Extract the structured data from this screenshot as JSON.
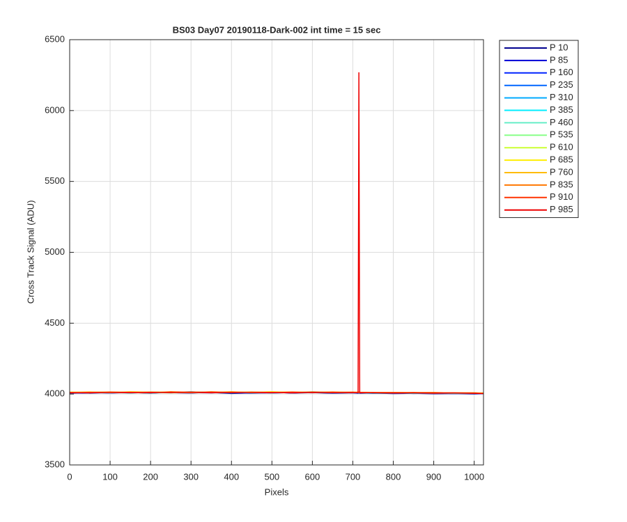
{
  "chart_data": {
    "type": "line",
    "title": "BS03 Day07 20190118-Dark-002 int time = 15 sec",
    "xlabel": "Pixels",
    "ylabel": "Cross Track Signal (ADU)",
    "x": [
      0,
      50,
      100,
      150,
      200,
      250,
      300,
      350,
      400,
      450,
      500,
      550,
      600,
      650,
      700,
      713,
      715,
      717,
      750,
      800,
      850,
      900,
      950,
      1000,
      1023
    ],
    "xlim": [
      0,
      1023
    ],
    "xticks": [
      0,
      100,
      200,
      300,
      400,
      500,
      600,
      700,
      800,
      900,
      1000
    ],
    "ylim": [
      3500,
      6500
    ],
    "yticks": [
      3500,
      4000,
      4500,
      5000,
      5500,
      6000,
      6500
    ],
    "grid": true,
    "legend": "outside-right",
    "series": [
      {
        "name": "P 10",
        "color": "#00008f",
        "values": [
          4005,
          4010,
          4008,
          4012,
          4006,
          4015,
          4009,
          4011,
          4004,
          4008,
          4013,
          4007,
          4010,
          4006,
          4009,
          4005,
          4008,
          4006,
          4007,
          4003,
          4005,
          4002,
          4004,
          4001,
          4003
        ]
      },
      {
        "name": "P 85",
        "color": "#0000d6",
        "values": [
          4008,
          4006,
          4012,
          4009,
          4014,
          4010,
          4007,
          4013,
          4009,
          4006,
          4011,
          4008,
          4012,
          4007,
          4010,
          4008,
          4006,
          4009,
          4005,
          4008,
          4004,
          4006,
          4003,
          4005,
          4002
        ]
      },
      {
        "name": "P 160",
        "color": "#0022ff",
        "values": [
          4010,
          4012,
          4007,
          4011,
          4009,
          4013,
          4010,
          4008,
          4012,
          4010,
          4007,
          4011,
          4009,
          4012,
          4008,
          4007,
          4010,
          4006,
          4008,
          4005,
          4007,
          4004,
          4006,
          4003,
          4004
        ]
      },
      {
        "name": "P 235",
        "color": "#0066ff",
        "values": [
          4007,
          4011,
          4013,
          4008,
          4012,
          4009,
          4014,
          4010,
          4007,
          4012,
          4009,
          4010,
          4013,
          4008,
          4011,
          4009,
          4007,
          4010,
          4006,
          4007,
          4005,
          4008,
          4004,
          4006,
          4003
        ]
      },
      {
        "name": "P 310",
        "color": "#00aaff",
        "values": [
          4012,
          4008,
          4010,
          4014,
          4007,
          4011,
          4016,
          4009,
          4012,
          4008,
          4010,
          4013,
          4011,
          4009,
          4012,
          4010,
          4008,
          4011,
          4007,
          4006,
          4008,
          4005,
          4007,
          4004,
          4005
        ]
      },
      {
        "name": "P 385",
        "color": "#00eeff",
        "values": [
          4009,
          4013,
          4011,
          4007,
          4013,
          4010,
          4012,
          4015,
          4010,
          4013,
          4008,
          4012,
          4010,
          4013,
          4009,
          4011,
          4009,
          4008,
          4009,
          4008,
          4006,
          4007,
          4005,
          4006,
          4004
        ]
      },
      {
        "name": "P 460",
        "color": "#66eec8",
        "values": [
          4011,
          4009,
          4014,
          4010,
          4008,
          4014,
          4011,
          4012,
          4015,
          4009,
          4012,
          4010,
          4016,
          4011,
          4010,
          4012,
          4010,
          4009,
          4008,
          4009,
          4007,
          4006,
          4008,
          4005,
          4006
        ]
      },
      {
        "name": "P 535",
        "color": "#88ff88",
        "values": [
          4013,
          4012,
          4009,
          4013,
          4011,
          4008,
          4013,
          4010,
          4013,
          4011,
          4014,
          4009,
          4013,
          4012,
          4011,
          4009,
          4011,
          4010,
          4010,
          4007,
          4009,
          4008,
          4006,
          4007,
          4005
        ]
      },
      {
        "name": "P 610",
        "color": "#ccff33",
        "values": [
          4010,
          4014,
          4012,
          4011,
          4015,
          4012,
          4009,
          4014,
          4011,
          4015,
          4010,
          4013,
          4011,
          4014,
          4012,
          4010,
          4012,
          4011,
          4009,
          4010,
          4008,
          4009,
          4007,
          4008,
          4006
        ]
      },
      {
        "name": "P 685",
        "color": "#ffee00",
        "values": [
          4014,
          4011,
          4015,
          4012,
          4010,
          4016,
          4013,
          4011,
          4014,
          4012,
          4016,
          4011,
          4014,
          4010,
          4013,
          4014,
          4013,
          4012,
          4011,
          4011,
          4010,
          4008,
          4009,
          4007,
          4008
        ]
      },
      {
        "name": "P 760",
        "color": "#ffbb00",
        "values": [
          4012,
          4015,
          4010,
          4016,
          4013,
          4011,
          4015,
          4012,
          4016,
          4010,
          4013,
          4015,
          4012,
          4015,
          4011,
          4012,
          4014,
          4013,
          4012,
          4009,
          4011,
          4010,
          4008,
          4009,
          4006
        ]
      },
      {
        "name": "P 835",
        "color": "#ff7700",
        "values": [
          4009,
          4012,
          4014,
          4010,
          4014,
          4012,
          4010,
          4016,
          4011,
          4014,
          4012,
          4010,
          4015,
          4011,
          4014,
          4011,
          4012,
          4010,
          4010,
          4012,
          4009,
          4011,
          4007,
          4008,
          4005
        ]
      },
      {
        "name": "P 910",
        "color": "#ff3300",
        "values": [
          4011,
          4008,
          4013,
          4012,
          4009,
          4015,
          4012,
          4009,
          4013,
          4011,
          4009,
          4014,
          4010,
          4013,
          4010,
          4013,
          4011,
          4012,
          4009,
          4008,
          4010,
          4007,
          4009,
          4006,
          4004
        ]
      },
      {
        "name": "P 985",
        "color": "#ee0000",
        "values": [
          4008,
          4010,
          4011,
          4009,
          4012,
          4010,
          4013,
          4011,
          4010,
          4012,
          4011,
          4009,
          4012,
          4010,
          4011,
          4010,
          6270,
          4008,
          4010,
          4007,
          4008,
          4006,
          4007,
          4005,
          4003
        ]
      }
    ]
  }
}
